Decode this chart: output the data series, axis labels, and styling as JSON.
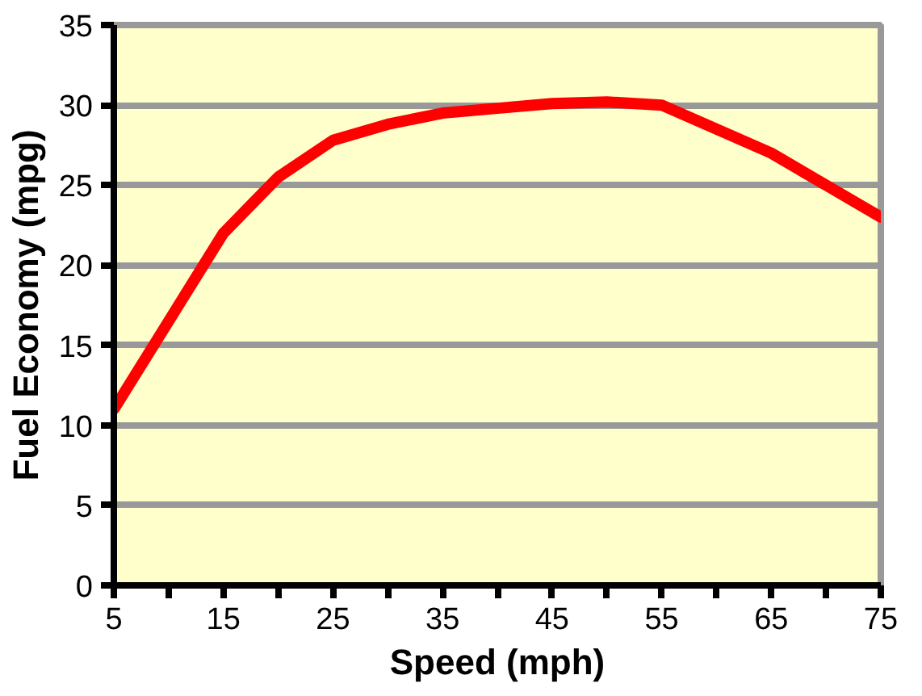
{
  "chart_data": {
    "type": "line",
    "xlabel": "Speed (mph)",
    "ylabel": "Fuel Economy (mpg)",
    "x": [
      5,
      10,
      15,
      20,
      25,
      30,
      35,
      40,
      45,
      50,
      55,
      60,
      65,
      70,
      75
    ],
    "series": [
      {
        "color": "#ff0000",
        "values": [
          11,
          16.5,
          22,
          25.5,
          27.8,
          28.8,
          29.5,
          29.8,
          30.1,
          30.2,
          30,
          28.5,
          27,
          25,
          23
        ]
      }
    ],
    "xlim": [
      5,
      75
    ],
    "ylim": [
      0,
      35
    ],
    "xticks": [
      5,
      {
        "value": 10,
        "label": null
      },
      15,
      {
        "value": 20,
        "label": null
      },
      25,
      {
        "value": 30,
        "label": null
      },
      35,
      {
        "value": 40,
        "label": null
      },
      45,
      {
        "value": 50,
        "label": null
      },
      55,
      {
        "value": 60,
        "label": null
      },
      65,
      {
        "value": 70,
        "label": null
      },
      75
    ],
    "yticks": [
      0,
      5,
      10,
      15,
      20,
      25,
      30,
      35
    ],
    "grid": "y",
    "marker": "none",
    "line_style": "solid"
  }
}
